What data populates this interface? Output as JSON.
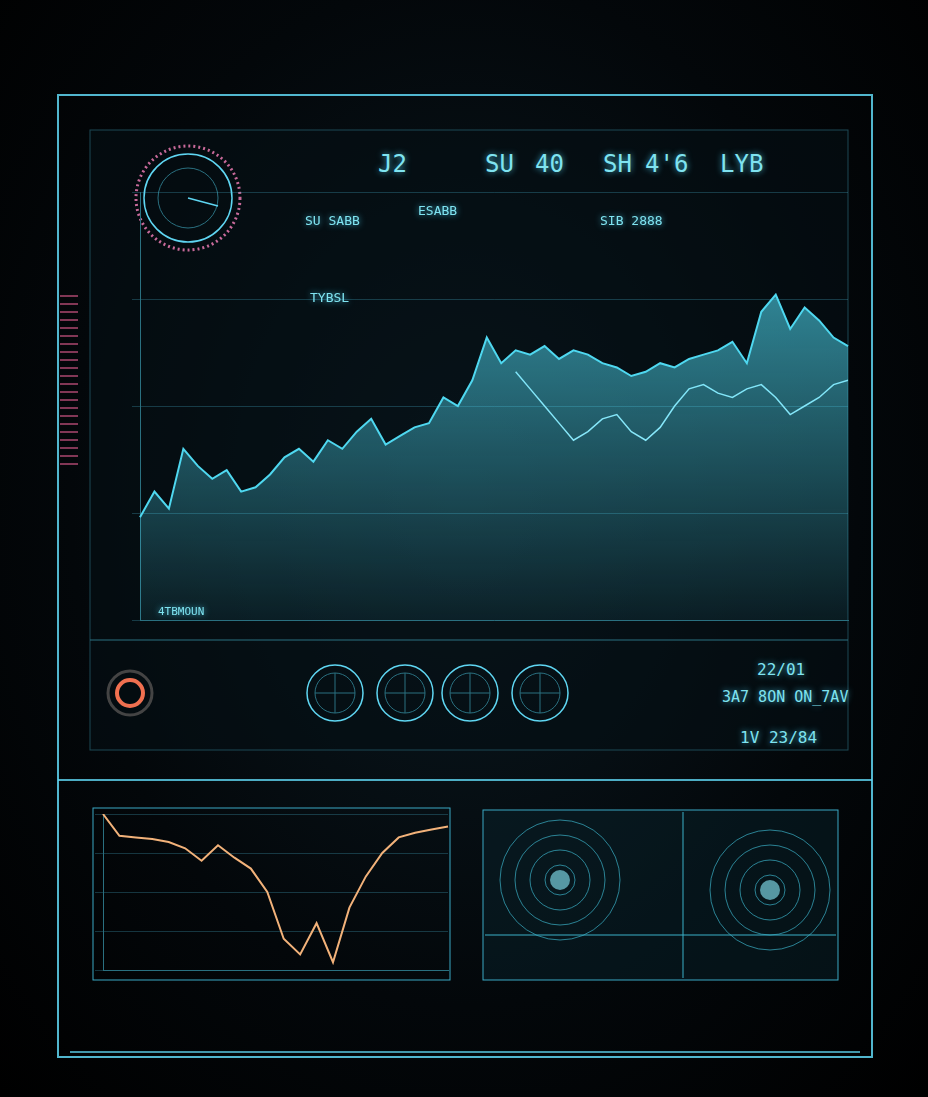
{
  "chart_data": [
    {
      "type": "line",
      "categories": [
        null,
        null,
        null,
        null,
        null,
        null,
        null,
        null,
        null,
        null,
        null,
        null,
        null,
        null,
        null,
        null,
        null,
        null,
        null,
        null,
        null,
        null,
        null,
        null,
        null,
        null,
        null,
        null,
        null,
        null,
        null,
        null,
        null,
        null,
        null,
        null,
        null,
        null,
        null,
        null,
        null,
        null,
        null,
        null,
        null,
        null,
        null,
        null,
        null,
        null
      ],
      "series": [
        {
          "color": "#4fd8f0",
          "values": [
            24,
            30,
            26,
            40,
            36,
            33,
            35,
            30,
            31,
            34,
            38,
            40,
            37,
            42,
            40,
            44,
            47,
            41,
            43,
            45,
            46,
            52,
            50,
            56,
            66,
            60,
            63,
            62,
            64,
            61,
            63,
            62,
            60,
            59,
            57,
            58,
            60,
            59,
            61,
            62,
            63,
            65,
            60,
            72,
            76,
            68,
            73,
            70,
            66,
            64
          ]
        },
        {
          "color": "#a8f0ff",
          "values": [
            null,
            null,
            null,
            null,
            null,
            null,
            null,
            null,
            null,
            null,
            null,
            null,
            null,
            null,
            null,
            null,
            null,
            null,
            null,
            null,
            null,
            null,
            null,
            null,
            null,
            null,
            58,
            54,
            50,
            46,
            42,
            44,
            47,
            48,
            44,
            42,
            45,
            50,
            54,
            55,
            53,
            52,
            54,
            55,
            52,
            48,
            50,
            52,
            55,
            56
          ]
        }
      ],
      "ylim": [
        0,
        100
      ],
      "yticks": [
        0,
        25,
        50,
        75,
        100
      ],
      "grid": true,
      "tick_labels": false,
      "annotations": [
        "J2",
        "SU",
        "40",
        "SH",
        "4'6",
        "LYB",
        "SU SABB",
        "ESABB",
        "SIB 2888",
        "TYBSL",
        "4TBMOUN",
        "22/01",
        "3A7 8ON ON_7AV",
        "1V 23/84"
      ]
    },
    {
      "type": "line",
      "categories": [
        null,
        null,
        null,
        null,
        null,
        null,
        null,
        null,
        null,
        null,
        null,
        null,
        null,
        null,
        null,
        null,
        null,
        null,
        null,
        null,
        null,
        null
      ],
      "series": [
        {
          "color": "#f2b27a",
          "values": [
            100,
            86,
            85,
            84,
            82,
            78,
            70,
            80,
            72,
            65,
            50,
            20,
            10,
            30,
            5,
            40,
            60,
            75,
            85,
            88,
            90,
            92
          ]
        }
      ],
      "ylim": [
        0,
        100
      ],
      "yticks": [
        0,
        25,
        50,
        75,
        100
      ],
      "grid": true,
      "tick_labels": false
    }
  ]
}
